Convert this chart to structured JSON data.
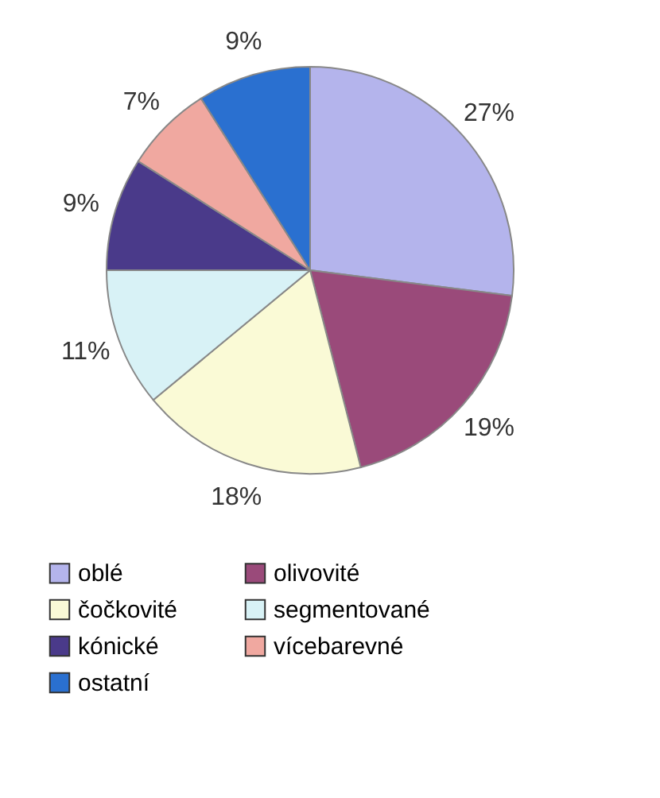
{
  "chart_data": {
    "type": "pie",
    "categories": [
      "oblé",
      "olivovité",
      "čočkovité",
      "segmentované",
      "kónické",
      "vícebarevné",
      "ostatní"
    ],
    "values": [
      27,
      19,
      18,
      11,
      9,
      7,
      9
    ],
    "colors": [
      "#b4b4ec",
      "#9a4a7a",
      "#fafad6",
      "#d8f2f6",
      "#4a3a8a",
      "#f0a8a0",
      "#2a70d0"
    ],
    "value_labels": [
      "27%",
      "19%",
      "18%",
      "11%",
      "9%",
      "7%",
      "9%"
    ],
    "legend": "bottom"
  }
}
